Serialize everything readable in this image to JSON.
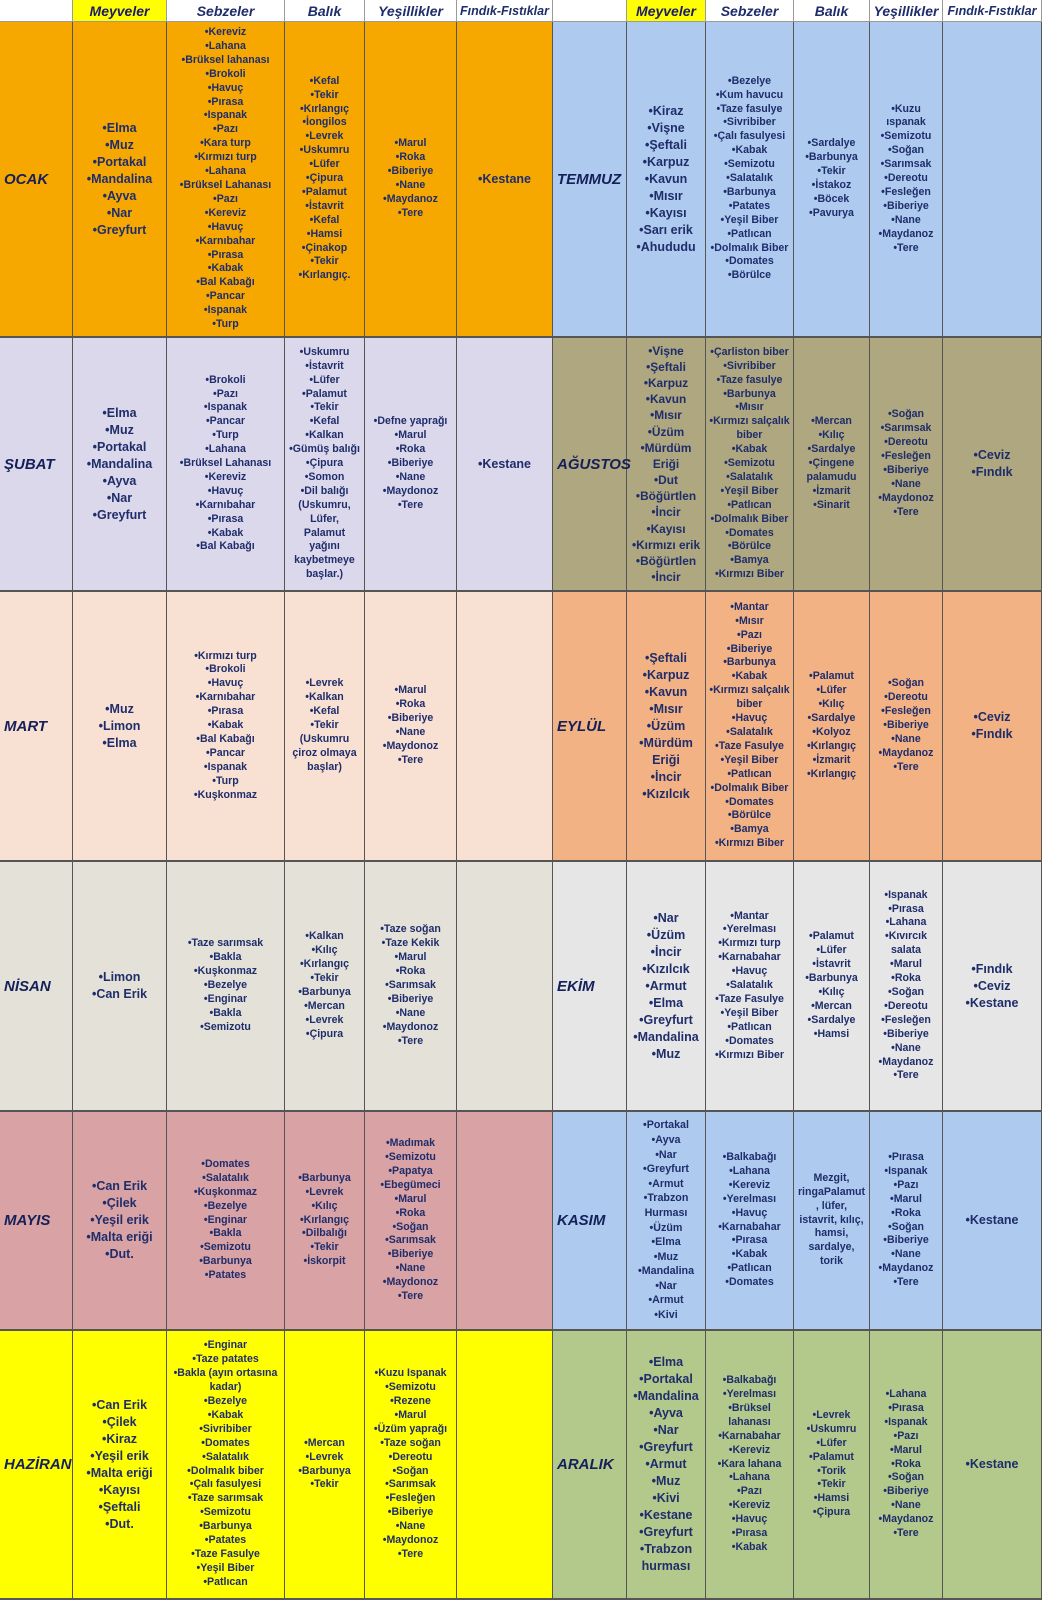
{
  "headers": {
    "meyveler": "Meyveler",
    "sebzeler": "Sebzeler",
    "balik": "Balık",
    "yesillikler": "Yeşillikler",
    "findik": "Fındık-Fıstıklar"
  },
  "left": [
    {
      "month": "OCAK",
      "color": "#f7a800",
      "meyveler": [
        "•Elma",
        "•Muz",
        "•Portakal",
        "•Mandalina",
        "•Ayva",
        "•Nar",
        "•Greyfurt"
      ],
      "sebzeler": [
        "•Kereviz",
        "•Lahana",
        "•Brüksel lahanası",
        "•Brokoli",
        "•Havuç",
        "•Pırasa",
        "•Ispanak",
        "•Pazı",
        "•Kara turp",
        "•Kırmızı turp",
        "•Lahana",
        "•Brüksel Lahanası",
        "•Pazı",
        "•Kereviz",
        "•Havuç",
        "•Karnıbahar",
        "•Pırasa",
        "•Kabak",
        "•Bal Kabağı",
        "•Pancar",
        "•Ispanak",
        "•Turp"
      ],
      "balik": [
        "•Kefal",
        "•Tekir",
        "•Kırlangıç",
        "•İongilos",
        "•Levrek",
        "•Uskumru",
        "•Lüfer",
        "•Çipura",
        "•Palamut",
        "•İstavrit",
        "•Kefal",
        "•Hamsi",
        "•Çinakop",
        "•Tekir",
        "•Kırlangıç."
      ],
      "yesillikler": [
        "•Marul",
        "•Roka",
        "•Biberiye",
        "•Nane",
        "•Maydanoz",
        "•Tere"
      ],
      "findik": [
        "•Kestane"
      ]
    },
    {
      "month": "ŞUBAT",
      "color": "#dcd8ec",
      "meyveler": [
        "•Elma",
        "•Muz",
        "•Portakal",
        "•Mandalina",
        "•Ayva",
        "•Nar",
        "•Greyfurt"
      ],
      "sebzeler": [
        "•Brokoli",
        "•Pazı",
        "•Ispanak",
        "•Pancar",
        "•Turp",
        "•Lahana",
        "•Brüksel Lahanası",
        "•Kereviz",
        "•Havuç",
        "•Karnıbahar",
        "•Pırasa",
        "•Kabak",
        "•Bal Kabağı"
      ],
      "balik": [
        "•Uskumru",
        "•İstavrit",
        "•Lüfer",
        "•Palamut",
        "•Tekir",
        "•Kefal",
        "•Kalkan",
        "•Gümüş balığı",
        "•Çipura",
        "•Somon",
        "•Dil balığı",
        "(Uskumru,",
        "Lüfer,",
        "Palamut",
        "yağını",
        "kaybetmeye",
        "başlar.)"
      ],
      "yesillikler": [
        "•Defne yaprağı",
        "•Marul",
        "•Roka",
        "•Biberiye",
        "•Nane",
        "•Maydonoz",
        "•Tere"
      ],
      "findik": [
        "•Kestane"
      ]
    },
    {
      "month": "MART",
      "color": "#f8e0d2",
      "meyveler": [
        "•Muz",
        "•Limon",
        "•Elma"
      ],
      "sebzeler": [
        "•Kırmızı turp",
        "•Brokoli",
        "•Havuç",
        "•Karnıbahar",
        "•Pırasa",
        "•Kabak",
        "•Bal Kabağı",
        "•Pancar",
        "•Ispanak",
        "•Turp",
        "•Kuşkonmaz"
      ],
      "balik": [
        "•Levrek",
        "•Kalkan",
        "•Kefal",
        "•Tekir",
        "(Uskumru",
        "çiroz olmaya",
        "başlar)"
      ],
      "yesillikler": [
        "•Marul",
        "•Roka",
        "•Biberiye",
        "•Nane",
        "•Maydonoz",
        "•Tere"
      ],
      "findik": []
    },
    {
      "month": "NİSAN",
      "color": "#e4e2d8",
      "meyveler": [
        "•Limon",
        "•Can Erik"
      ],
      "sebzeler": [
        "•Taze sarımsak",
        "•Bakla",
        "•Kuşkonmaz",
        "•Bezelye",
        "•Enginar",
        "•Bakla",
        "•Semizotu"
      ],
      "balik": [
        "•Kalkan",
        "•Kılıç",
        "•Kırlangıç",
        "•Tekir",
        "•Barbunya",
        "•Mercan",
        "•Levrek",
        "•Çipura"
      ],
      "yesillikler": [
        "•Taze soğan",
        "•Taze Kekik",
        "•Marul",
        "•Roka",
        "•Sarımsak",
        "•Biberiye",
        "•Nane",
        "•Maydonoz",
        "•Tere"
      ],
      "findik": []
    },
    {
      "month": "MAYIS",
      "color": "#d9a2a4",
      "meyveler": [
        "•Can Erik",
        "•Çilek",
        "•Yeşil erik",
        "•Malta eriği",
        "•Dut."
      ],
      "sebzeler": [
        "•Domates",
        "•Salatalık",
        "•Kuşkonmaz",
        "•Bezelye",
        "•Enginar",
        "•Bakla",
        "•Semizotu",
        "•Barbunya",
        "•Patates"
      ],
      "balik": [
        "•Barbunya",
        "•Levrek",
        "•Kılıç",
        "•Kırlangıç",
        "•Dilbalığı",
        "•Tekir",
        "•İskorpit"
      ],
      "yesillikler": [
        "•Madımak",
        "•Semizotu",
        "•Papatya",
        "•Ebegümeci",
        "•Marul",
        "•Roka",
        "•Soğan",
        "•Sarımsak",
        "•Biberiye",
        "•Nane",
        "•Maydonoz",
        "•Tere"
      ],
      "findik": []
    },
    {
      "month": "HAZİRAN",
      "color": "#ffff00",
      "meyveler": [
        "•Can Erik",
        "•Çilek",
        "•Kiraz",
        "•Yeşil erik",
        "•Malta eriği",
        "•Kayısı",
        "•Şeftali",
        "•Dut."
      ],
      "sebzeler": [
        "•Enginar",
        "•Taze patates",
        "•Bakla (ayın ortasına",
        "kadar)",
        "•Bezelye",
        "•Kabak",
        "•Sivribiber",
        "•Domates",
        "•Salatalık",
        "•Dolmalık biber",
        "•Çalı fasulyesi",
        "•Taze sarımsak",
        "•Semizotu",
        "•Barbunya",
        "•Patates",
        "•Taze Fasulye",
        "•Yeşil Biber",
        "•Patlıcan"
      ],
      "balik": [
        "•Mercan",
        "•Levrek",
        "•Barbunya",
        "•Tekir"
      ],
      "yesillikler": [
        "•Kuzu Ispanak",
        "•Semizotu",
        "•Rezene",
        "•Marul",
        "•Üzüm yaprağı",
        "•Taze soğan",
        "•Dereotu",
        "•Soğan",
        "•Sarımsak",
        "•Fesleğen",
        "•Biberiye",
        "•Nane",
        "•Maydonoz",
        "•Tere"
      ],
      "findik": []
    }
  ],
  "right": [
    {
      "month": "TEMMUZ",
      "color": "#aecbef",
      "meyveler": [
        "•Kiraz",
        "•Vişne",
        "•Şeftali",
        "•Karpuz",
        "•Kavun",
        "•Mısır",
        "•Kayısı",
        "•Sarı erik",
        "•Ahududu"
      ],
      "sebzeler": [
        "•Bezelye",
        "•Kum havucu",
        "•Taze fasulye",
        "•Sivribiber",
        "•Çalı fasulyesi",
        "•Kabak",
        "•Semizotu",
        "•Salatalık",
        "•Barbunya",
        "•Patates",
        "•Yeşil Biber",
        "•Patlıcan",
        "•Dolmalık Biber",
        "•Domates",
        "•Börülce"
      ],
      "balik": [
        "•Sardalye",
        "•Barbunya",
        "•Tekir",
        "•İstakoz",
        "•Böcek",
        "•Pavurya"
      ],
      "yesillikler": [
        "•Kuzu",
        "ıspanak",
        "•Semizotu",
        "•Soğan",
        "•Sarımsak",
        "•Dereotu",
        "•Fesleğen",
        "•Biberiye",
        "•Nane",
        "•Maydanoz",
        "•Tere"
      ],
      "findik": []
    },
    {
      "month": "AĞUSTOS",
      "color": "#aea77f",
      "meyveler": [
        "•Vişne",
        "•Şeftali",
        "•Karpuz",
        "•Kavun",
        "•Mısır",
        "•Üzüm",
        "•Mürdüm",
        "Eriği",
        "•Dut",
        "•Böğürtlen",
        "•İncir",
        "•Kayısı",
        "•Kırmızı erik",
        "•Böğürtlen",
        "•İncir"
      ],
      "sebzeler": [
        "•Çarliston biber",
        "•Sivribiber",
        "•Taze fasulye",
        "•Barbunya",
        "•Mısır",
        "•Kırmızı salçalık",
        "biber",
        "•Kabak",
        "•Semizotu",
        "•Salatalık",
        "•Yeşil Biber",
        "•Patlıcan",
        "•Dolmalık Biber",
        "•Domates",
        "•Börülce",
        "•Bamya",
        "•Kırmızı Biber"
      ],
      "balik": [
        "•Mercan",
        "•Kılıç",
        "•Sardalye",
        "•Çingene",
        "palamudu",
        "•İzmarit",
        "•Sinarit"
      ],
      "yesillikler": [
        "•Soğan",
        "•Sarımsak",
        "•Dereotu",
        "•Fesleğen",
        "•Biberiye",
        "•Nane",
        "•Maydonoz",
        "•Tere"
      ],
      "findik": [
        "•Ceviz",
        "•Fındık"
      ]
    },
    {
      "month": "EYLÜL",
      "color": "#f2b283",
      "meyveler": [
        "•Şeftali",
        "•Karpuz",
        "•Kavun",
        "•Mısır",
        "•Üzüm",
        "•Mürdüm",
        "Eriği",
        "•İncir",
        "•Kızılcık"
      ],
      "sebzeler": [
        "•Mantar",
        "•Mısır",
        "•Pazı",
        "•Biberiye",
        "•Barbunya",
        "•Kabak",
        "•Kırmızı salçalık",
        "biber",
        "•Havuç",
        "•Salatalık",
        "•Taze Fasulye",
        "•Yeşil Biber",
        "•Patlıcan",
        "•Dolmalık Biber",
        "•Domates",
        "•Börülce",
        "•Bamya",
        "•Kırmızı Biber"
      ],
      "balik": [
        "•Palamut",
        "•Lüfer",
        "•Kılıç",
        "•Sardalye",
        "•Kolyoz",
        "•Kırlangıç",
        "•İzmarit",
        "•Kırlangıç"
      ],
      "yesillikler": [
        "•Soğan",
        "•Dereotu",
        "•Fesleğen",
        "•Biberiye",
        "•Nane",
        "•Maydanoz",
        "•Tere"
      ],
      "findik": [
        "•Ceviz",
        "•Fındık"
      ]
    },
    {
      "month": "EKİM",
      "color": "#e6e6e6",
      "meyveler": [
        "•Nar",
        "•Üzüm",
        "•İncir",
        "•Kızılcık",
        "•Armut",
        "•Elma",
        "•Greyfurt",
        "•Mandalina",
        "•Muz"
      ],
      "sebzeler": [
        "•Mantar",
        "•Yerelması",
        "•Kırmızı turp",
        "•Karnabahar",
        "•Havuç",
        "•Salatalık",
        "•Taze Fasulye",
        "•Yeşil Biber",
        "•Patlıcan",
        "•Domates",
        "•Kırmızı Biber"
      ],
      "balik": [
        "•Palamut",
        "•Lüfer",
        "•İstavrit",
        "•Barbunya",
        "•Kılıç",
        "•Mercan",
        "•Sardalye",
        "•Hamsi"
      ],
      "yesillikler": [
        "•Ispanak",
        "•Pırasa",
        "•Lahana",
        "•Kıvırcık",
        "salata",
        "•Marul",
        "•Roka",
        "•Soğan",
        "•Dereotu",
        "•Fesleğen",
        "•Biberiye",
        "•Nane",
        "•Maydanoz",
        "•Tere"
      ],
      "findik": [
        "•Fındık",
        "•Ceviz",
        "•Kestane"
      ]
    },
    {
      "month": "KASIM",
      "color": "#aecbef",
      "meyveler": [
        "•Portakal",
        "•Ayva",
        "•Nar",
        "•Greyfurt",
        "•Armut",
        "•Trabzon",
        "Hurması",
        "•Üzüm",
        "•Elma",
        "•Muz",
        "•Mandalina",
        "•Nar",
        "•Armut",
        "•Kivi"
      ],
      "sebzeler": [
        "•Balkabağı",
        "•Lahana",
        "•Kereviz",
        "•Yerelması",
        "•Havuç",
        "•Karnabahar",
        "•Pırasa",
        "•Kabak",
        "•Patlıcan",
        "•Domates"
      ],
      "balik": [
        "Mezgit,",
        "ringaPalamut",
        ", lüfer,",
        "istavrit, kılıç,",
        "hamsi,",
        "sardalye,",
        "torik"
      ],
      "yesillikler": [
        "•Pırasa",
        "•Ispanak",
        "•Pazı",
        "•Marul",
        "•Roka",
        "•Soğan",
        "•Biberiye",
        "•Nane",
        "•Maydanoz",
        "•Tere"
      ],
      "findik": [
        "•Kestane"
      ]
    },
    {
      "month": "ARALIK",
      "color": "#b3c98c",
      "meyveler": [
        "•Elma",
        "•Portakal",
        "•Mandalina",
        "•Ayva",
        "•Nar",
        "•Greyfurt",
        "•Armut",
        "•Muz",
        "•Kivi",
        "•Kestane",
        "•Greyfurt",
        "•Trabzon",
        "hurması"
      ],
      "sebzeler": [
        "•Balkabağı",
        "•Yerelması",
        "•Brüksel",
        "lahanası",
        "•Karnabahar",
        "•Kereviz",
        "•Kara lahana",
        "•Lahana",
        "•Pazı",
        "•Kereviz",
        "•Havuç",
        "•Pırasa",
        "•Kabak"
      ],
      "balik": [
        "•Levrek",
        "•Uskumru",
        "•Lüfer",
        "•Palamut",
        "•Torik",
        "•Tekir",
        "•Hamsi",
        "•Çipura"
      ],
      "yesillikler": [
        "•Lahana",
        "•Pırasa",
        "•Ispanak",
        "•Pazı",
        "•Marul",
        "•Roka",
        "•Soğan",
        "•Biberiye",
        "•Nane",
        "•Maydanoz",
        "•Tere"
      ],
      "findik": [
        "•Kestane"
      ]
    }
  ]
}
